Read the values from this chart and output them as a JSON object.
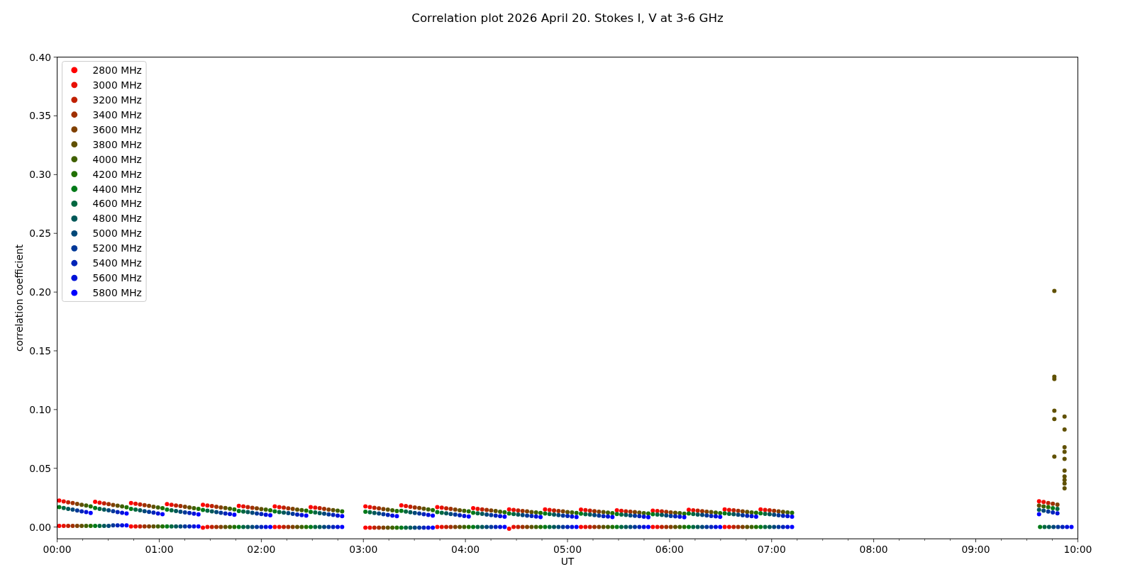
{
  "chart_data": {
    "type": "scatter",
    "title": "Correlation plot 2026 April 20. Stokes I, V at 3-6 GHz",
    "xlabel": "UT",
    "ylabel": "correlation coefficient",
    "marker": "circle",
    "legend": "top left",
    "xlim": [
      0,
      10
    ],
    "ylim": [
      -0.01,
      0.4
    ],
    "xticks": [
      {
        "value": 0,
        "label": "00:00"
      },
      {
        "value": 0.25,
        "label": null
      },
      {
        "value": 0.5,
        "label": null
      },
      {
        "value": 0.75,
        "label": null
      },
      {
        "value": 1,
        "label": "01:00"
      },
      {
        "value": 1.25,
        "label": null
      },
      {
        "value": 1.5,
        "label": null
      },
      {
        "value": 1.75,
        "label": null
      },
      {
        "value": 2,
        "label": "02:00"
      },
      {
        "value": 2.25,
        "label": null
      },
      {
        "value": 2.5,
        "label": null
      },
      {
        "value": 2.75,
        "label": null
      },
      {
        "value": 3,
        "label": "03:00"
      },
      {
        "value": 3.25,
        "label": null
      },
      {
        "value": 3.5,
        "label": null
      },
      {
        "value": 3.75,
        "label": null
      },
      {
        "value": 4,
        "label": "04:00"
      },
      {
        "value": 4.25,
        "label": null
      },
      {
        "value": 4.5,
        "label": null
      },
      {
        "value": 4.75,
        "label": null
      },
      {
        "value": 5,
        "label": "05:00"
      },
      {
        "value": 5.25,
        "label": null
      },
      {
        "value": 5.5,
        "label": null
      },
      {
        "value": 5.75,
        "label": null
      },
      {
        "value": 6,
        "label": "06:00"
      },
      {
        "value": 6.25,
        "label": null
      },
      {
        "value": 6.5,
        "label": null
      },
      {
        "value": 6.75,
        "label": null
      },
      {
        "value": 7,
        "label": "07:00"
      },
      {
        "value": 7.25,
        "label": null
      },
      {
        "value": 7.5,
        "label": null
      },
      {
        "value": 7.75,
        "label": null
      },
      {
        "value": 8,
        "label": "08:00"
      },
      {
        "value": 8.25,
        "label": null
      },
      {
        "value": 8.5,
        "label": null
      },
      {
        "value": 8.75,
        "label": null
      },
      {
        "value": 9,
        "label": "09:00"
      },
      {
        "value": 9.25,
        "label": null
      },
      {
        "value": 9.5,
        "label": null
      },
      {
        "value": 9.75,
        "label": null
      },
      {
        "value": 10,
        "label": "10:00"
      }
    ],
    "yticks": [
      {
        "value": 0,
        "label": "0.00"
      },
      {
        "value": 0.05,
        "label": "0.05"
      },
      {
        "value": 0.1,
        "label": "0.10"
      },
      {
        "value": 0.15,
        "label": "0.15"
      },
      {
        "value": 0.2,
        "label": "0.20"
      },
      {
        "value": 0.25,
        "label": "0.25"
      },
      {
        "value": 0.3,
        "label": "0.30"
      },
      {
        "value": 0.35,
        "label": "0.35"
      },
      {
        "value": 0.4,
        "label": "0.40"
      }
    ],
    "series": [
      {
        "name": "2800 MHz",
        "color": "#ff0000",
        "x": [
          0.02,
          0.372,
          0.724,
          1.076,
          1.428,
          1.78,
          2.132,
          2.484,
          3.02,
          3.372,
          3.724,
          4.076,
          4.428,
          4.78,
          5.132,
          5.484,
          5.836,
          6.188,
          6.54,
          6.892,
          9.62,
          0.02,
          0.724,
          1.428,
          2.132,
          3.02,
          3.724,
          4.428,
          5.132,
          5.836,
          6.54
        ],
        "values": [
          0.0225,
          0.0215,
          0.0205,
          0.0195,
          0.019,
          0.018,
          0.0175,
          0.017,
          0.0175,
          0.0185,
          0.017,
          0.016,
          0.015,
          0.015,
          0.0148,
          0.0142,
          0.014,
          0.0147,
          0.015,
          0.015,
          0.022,
          0.001,
          0.0005,
          -0.0005,
          0,
          -0.0005,
          0,
          -0.0015,
          0,
          0,
          0
        ]
      },
      {
        "name": "3000 MHz",
        "color": "#e81005",
        "x": [
          0.064,
          0.416,
          0.768,
          1.12,
          1.472,
          1.824,
          2.176,
          2.528,
          3.064,
          3.416,
          3.768,
          4.12,
          4.472,
          4.824,
          5.176,
          5.528,
          5.88,
          6.232,
          6.584,
          6.936,
          9.665,
          0.064,
          0.768,
          1.472,
          2.176,
          3.064,
          3.768,
          4.472,
          5.176,
          5.88,
          6.584
        ],
        "values": [
          0.0218,
          0.0208,
          0.0199,
          0.0189,
          0.0184,
          0.0175,
          0.017,
          0.0165,
          0.017,
          0.0179,
          0.0165,
          0.0155,
          0.0146,
          0.0146,
          0.0144,
          0.0138,
          0.0136,
          0.0143,
          0.0146,
          0.0146,
          0.0213,
          0.001,
          0.0005,
          0,
          0,
          -0.0005,
          0,
          0,
          0,
          0,
          0
        ]
      },
      {
        "name": "3200 MHz",
        "color": "#c02000",
        "x": [
          0.108,
          0.46,
          0.812,
          1.164,
          1.516,
          1.868,
          2.22,
          2.572,
          3.108,
          3.46,
          3.812,
          4.164,
          4.516,
          4.868,
          5.22,
          5.572,
          5.924,
          6.276,
          6.628,
          6.98,
          9.71,
          0.108,
          0.812,
          1.516,
          2.22,
          3.108,
          3.812,
          4.516,
          5.22,
          5.924,
          6.628
        ],
        "values": [
          0.0211,
          0.0202,
          0.0192,
          0.0183,
          0.0179,
          0.0169,
          0.0165,
          0.016,
          0.0164,
          0.0173,
          0.0159,
          0.015,
          0.0141,
          0.0141,
          0.014,
          0.0134,
          0.0133,
          0.0139,
          0.0142,
          0.0142,
          0.0205,
          0.001,
          0.0005,
          0,
          0,
          -0.0005,
          0,
          0,
          0,
          0,
          0
        ]
      },
      {
        "name": "3400 MHz",
        "color": "#a03000",
        "x": [
          0.152,
          0.504,
          0.856,
          1.208,
          1.56,
          1.912,
          2.264,
          2.616,
          3.152,
          3.504,
          3.856,
          4.208,
          4.56,
          4.912,
          5.264,
          5.616,
          5.968,
          6.32,
          6.672,
          7.024,
          9.755,
          0.152,
          0.856,
          1.56,
          2.264,
          3.152,
          3.856,
          4.56,
          5.264,
          5.968,
          6.672
        ],
        "values": [
          0.0204,
          0.0195,
          0.0186,
          0.0178,
          0.0173,
          0.0164,
          0.0159,
          0.0155,
          0.0159,
          0.0167,
          0.0154,
          0.0146,
          0.0137,
          0.0137,
          0.0135,
          0.013,
          0.0129,
          0.0135,
          0.0138,
          0.0138,
          0.0198,
          0.001,
          0.0005,
          0,
          0,
          -0.0005,
          0,
          0,
          0,
          0,
          0
        ]
      },
      {
        "name": "3600 MHz",
        "color": "#804000",
        "x": [
          0.196,
          0.548,
          0.9,
          1.252,
          1.604,
          1.956,
          2.308,
          2.66,
          3.196,
          3.548,
          3.9,
          4.252,
          4.604,
          4.956,
          5.308,
          5.66,
          6.012,
          6.364,
          6.716,
          7.068,
          9.8,
          0.196,
          0.9,
          1.604,
          2.308,
          3.196,
          3.9,
          4.604,
          5.308,
          6.012,
          6.716
        ],
        "values": [
          0.0197,
          0.0188,
          0.018,
          0.0172,
          0.0167,
          0.0159,
          0.0154,
          0.0149,
          0.0153,
          0.0162,
          0.0149,
          0.0141,
          0.0133,
          0.0133,
          0.0131,
          0.0127,
          0.0125,
          0.0131,
          0.0133,
          0.0133,
          0.0191,
          0.001,
          0.0005,
          0,
          0,
          -0.0005,
          0,
          0,
          0,
          0,
          0
        ]
      },
      {
        "name": "3800 MHz",
        "color": "#605000",
        "x": [
          0.24,
          0.592,
          0.944,
          1.296,
          1.648,
          2,
          2.352,
          2.704,
          3.24,
          3.592,
          3.944,
          4.296,
          4.648,
          5,
          5.352,
          5.704,
          6.056,
          6.408,
          6.76,
          7.112,
          9.62,
          0.24,
          0.944,
          1.648,
          2.352,
          3.24,
          3.944,
          4.648,
          5.352,
          6.056,
          6.76,
          9.77,
          9.77,
          9.77,
          9.77,
          9.77,
          9.77,
          9.87,
          9.87,
          9.87,
          9.87,
          9.87,
          9.87,
          9.87,
          9.87,
          9.87,
          9.87
        ],
        "values": [
          0.019,
          0.0182,
          0.0173,
          0.0166,
          0.0162,
          0.0153,
          0.0149,
          0.0144,
          0.0148,
          0.0156,
          0.0143,
          0.0136,
          0.0128,
          0.0128,
          0.0127,
          0.0123,
          0.0121,
          0.0127,
          0.0129,
          0.0129,
          0.0183,
          0.001,
          0.0005,
          0,
          0,
          -0.0005,
          0,
          0,
          0,
          0,
          0,
          0.201,
          0.128,
          0.126,
          0.099,
          0.092,
          0.06,
          0.094,
          0.083,
          0.068,
          0.064,
          0.058,
          0.048,
          0.043,
          0.04,
          0.037,
          0.033
        ]
      },
      {
        "name": "4000 MHz",
        "color": "#406000",
        "x": [
          0.284,
          0.636,
          0.988,
          1.34,
          1.692,
          2.044,
          2.396,
          2.748,
          3.284,
          3.636,
          3.988,
          4.34,
          4.692,
          5.044,
          5.396,
          5.748,
          6.1,
          6.452,
          6.804,
          7.156,
          9.665,
          0.284,
          0.988,
          1.692,
          2.396,
          3.284,
          3.988,
          4.692,
          5.396,
          6.1,
          6.804
        ],
        "values": [
          0.0183,
          0.0175,
          0.0167,
          0.016,
          0.0156,
          0.0148,
          0.0144,
          0.0139,
          0.0142,
          0.015,
          0.0138,
          0.0131,
          0.0124,
          0.0124,
          0.0123,
          0.0119,
          0.0118,
          0.0123,
          0.0125,
          0.0125,
          0.0176,
          0.001,
          0.0005,
          0,
          0,
          -0.0005,
          0,
          0,
          0,
          0,
          0
        ]
      },
      {
        "name": "4200 MHz",
        "color": "#207000",
        "x": [
          0.328,
          0.68,
          1.032,
          1.384,
          1.736,
          2.088,
          2.44,
          2.792,
          3.328,
          3.68,
          4.032,
          4.384,
          4.736,
          5.088,
          5.44,
          5.792,
          6.144,
          6.496,
          6.848,
          7.2,
          9.71,
          0.328,
          1.032,
          1.736,
          2.44,
          3.328,
          4.032,
          4.736,
          5.44,
          6.144,
          6.848
        ],
        "values": [
          0.0176,
          0.0168,
          0.0161,
          0.0154,
          0.015,
          0.0143,
          0.0139,
          0.0134,
          0.0137,
          0.0144,
          0.0133,
          0.0126,
          0.012,
          0.012,
          0.0119,
          0.0115,
          0.0114,
          0.0119,
          0.0121,
          0.0121,
          0.0169,
          0.001,
          0.0005,
          0,
          0,
          -0.0005,
          0,
          0,
          0,
          0,
          0
        ]
      },
      {
        "name": "4400 MHz",
        "color": "#007a18",
        "x": [
          0.02,
          0.372,
          0.724,
          1.076,
          1.428,
          1.78,
          2.132,
          2.484,
          3.02,
          3.372,
          3.724,
          4.076,
          4.428,
          4.78,
          5.132,
          5.484,
          5.836,
          6.188,
          6.54,
          6.892,
          9.755,
          0.372,
          1.076,
          1.78,
          2.484,
          3.372,
          4.076,
          4.78,
          5.484,
          6.188,
          6.892,
          9.63
        ],
        "values": [
          0.0169,
          0.0162,
          0.0154,
          0.0149,
          0.0145,
          0.0137,
          0.0133,
          0.0129,
          0.0131,
          0.0138,
          0.0127,
          0.0122,
          0.0115,
          0.0115,
          0.0114,
          0.0111,
          0.011,
          0.0115,
          0.0117,
          0.0117,
          0.0161,
          0.001,
          0.0005,
          0,
          0,
          -0.0005,
          0,
          0,
          0,
          0,
          0,
          0
        ]
      },
      {
        "name": "4600 MHz",
        "color": "#006840",
        "x": [
          0.064,
          0.416,
          0.768,
          1.12,
          1.472,
          1.824,
          2.176,
          2.528,
          3.064,
          3.416,
          3.768,
          4.12,
          4.472,
          4.824,
          5.176,
          5.528,
          5.88,
          6.232,
          6.584,
          6.936,
          9.8,
          0.416,
          1.12,
          1.824,
          2.528,
          3.416,
          4.12,
          4.824,
          5.528,
          6.232,
          6.936,
          9.674
        ],
        "values": [
          0.0162,
          0.0155,
          0.0148,
          0.0143,
          0.0139,
          0.0132,
          0.0128,
          0.0124,
          0.0126,
          0.0132,
          0.0122,
          0.0117,
          0.0111,
          0.0111,
          0.011,
          0.0107,
          0.0106,
          0.0111,
          0.0113,
          0.0113,
          0.0154,
          0.001,
          0.0005,
          0,
          0,
          -0.0005,
          0,
          0,
          0,
          0,
          0,
          0
        ]
      },
      {
        "name": "4800 MHz",
        "color": "#005858",
        "x": [
          0.108,
          0.46,
          0.812,
          1.164,
          1.516,
          1.868,
          2.22,
          2.572,
          3.108,
          3.46,
          3.812,
          4.164,
          4.516,
          4.868,
          5.22,
          5.572,
          5.924,
          6.276,
          6.628,
          6.98,
          9.62,
          0.46,
          1.164,
          1.868,
          2.572,
          3.46,
          4.164,
          4.868,
          5.572,
          6.276,
          6.98,
          9.718
        ],
        "values": [
          0.0155,
          0.0148,
          0.0142,
          0.0137,
          0.0133,
          0.0127,
          0.0123,
          0.0119,
          0.012,
          0.0126,
          0.0117,
          0.0112,
          0.0107,
          0.0107,
          0.0106,
          0.0103,
          0.0103,
          0.0107,
          0.0109,
          0.0109,
          0.0147,
          0.001,
          0.0005,
          0,
          0,
          -0.0005,
          0,
          0,
          0,
          0,
          0,
          0
        ]
      },
      {
        "name": "5000 MHz",
        "color": "#004878",
        "x": [
          0.152,
          0.504,
          0.856,
          1.208,
          1.56,
          1.912,
          2.264,
          2.616,
          3.152,
          3.504,
          3.856,
          4.208,
          4.56,
          4.912,
          5.264,
          5.616,
          5.968,
          6.32,
          6.672,
          7.024,
          9.665,
          0.504,
          1.208,
          1.912,
          2.616,
          3.504,
          4.208,
          4.912,
          5.616,
          6.32,
          7.024,
          9.762
        ],
        "values": [
          0.0148,
          0.0142,
          0.0135,
          0.0131,
          0.0128,
          0.0121,
          0.0118,
          0.0114,
          0.0115,
          0.012,
          0.0111,
          0.0107,
          0.0102,
          0.0102,
          0.0102,
          0.0099,
          0.0099,
          0.0103,
          0.0105,
          0.0105,
          0.0139,
          0.001,
          0.0005,
          0,
          0,
          -0.0005,
          0,
          0,
          0,
          0,
          0,
          0
        ]
      },
      {
        "name": "5200 MHz",
        "color": "#003898",
        "x": [
          0.196,
          0.548,
          0.9,
          1.252,
          1.604,
          1.956,
          2.308,
          2.66,
          3.196,
          3.548,
          3.9,
          4.252,
          4.604,
          4.956,
          5.308,
          5.66,
          6.012,
          6.364,
          6.716,
          7.068,
          9.71,
          0.548,
          1.252,
          1.956,
          2.66,
          3.548,
          4.252,
          4.956,
          5.66,
          6.364,
          7.068,
          9.806
        ],
        "values": [
          0.0141,
          0.0135,
          0.0129,
          0.0125,
          0.0122,
          0.0116,
          0.0113,
          0.0108,
          0.0109,
          0.0115,
          0.0106,
          0.0102,
          0.0098,
          0.0098,
          0.0098,
          0.0096,
          0.0095,
          0.0099,
          0.01,
          0.01,
          0.0132,
          0.0015,
          0.0005,
          0,
          0,
          -0.0005,
          0,
          0,
          0,
          0,
          0,
          0
        ]
      },
      {
        "name": "5400 MHz",
        "color": "#0024b8",
        "x": [
          0.24,
          0.592,
          0.944,
          1.296,
          1.648,
          2,
          2.352,
          2.704,
          3.24,
          3.592,
          3.944,
          4.296,
          4.648,
          5,
          5.352,
          5.704,
          6.056,
          6.408,
          6.76,
          7.112,
          9.755,
          0.592,
          1.296,
          2,
          2.704,
          3.592,
          4.296,
          5,
          5.704,
          6.408,
          7.112,
          9.85
        ],
        "values": [
          0.0134,
          0.0128,
          0.0123,
          0.012,
          0.0116,
          0.0111,
          0.0107,
          0.0103,
          0.0104,
          0.0109,
          0.0101,
          0.0098,
          0.0094,
          0.0094,
          0.0093,
          0.0092,
          0.0091,
          0.0095,
          0.0096,
          0.0096,
          0.0125,
          0.0015,
          0.0005,
          0,
          0,
          -0.0005,
          0,
          0,
          0,
          0,
          0,
          0
        ]
      },
      {
        "name": "5600 MHz",
        "color": "#0012d8",
        "x": [
          0.284,
          0.636,
          0.988,
          1.34,
          1.692,
          2.044,
          2.396,
          2.748,
          3.284,
          3.636,
          3.988,
          4.34,
          4.692,
          5.044,
          5.396,
          5.748,
          6.1,
          6.452,
          6.804,
          7.156,
          9.8,
          0.636,
          1.34,
          2.044,
          2.748,
          3.636,
          4.34,
          5.044,
          5.748,
          6.452,
          7.156,
          9.894
        ],
        "values": [
          0.0127,
          0.0122,
          0.0116,
          0.0114,
          0.0111,
          0.0105,
          0.0102,
          0.0098,
          0.0098,
          0.0103,
          0.0095,
          0.0093,
          0.0089,
          0.0089,
          0.0089,
          0.0088,
          0.0088,
          0.0091,
          0.0092,
          0.0092,
          0.0117,
          0.0015,
          0.0005,
          0,
          0,
          -0.0005,
          0,
          0,
          0,
          0,
          0,
          0
        ]
      },
      {
        "name": "5800 MHz",
        "color": "#0000ff",
        "x": [
          0.328,
          0.68,
          1.032,
          1.384,
          1.736,
          2.088,
          2.44,
          2.792,
          3.328,
          3.68,
          4.032,
          4.384,
          4.736,
          5.088,
          5.44,
          5.792,
          6.144,
          6.496,
          6.848,
          7.2,
          9.62,
          0.68,
          1.384,
          2.088,
          2.792,
          3.68,
          4.384,
          5.088,
          5.792,
          6.496,
          7.2,
          9.938
        ],
        "values": [
          0.012,
          0.0115,
          0.011,
          0.0108,
          0.0105,
          0.01,
          0.0097,
          0.0093,
          0.0093,
          0.0097,
          0.009,
          0.0088,
          0.0085,
          0.0085,
          0.0085,
          0.0084,
          0.0084,
          0.0087,
          0.0088,
          0.0088,
          0.011,
          0.0015,
          0.0005,
          0,
          0,
          -0.0005,
          0,
          0,
          0,
          0,
          0,
          0
        ]
      }
    ]
  }
}
